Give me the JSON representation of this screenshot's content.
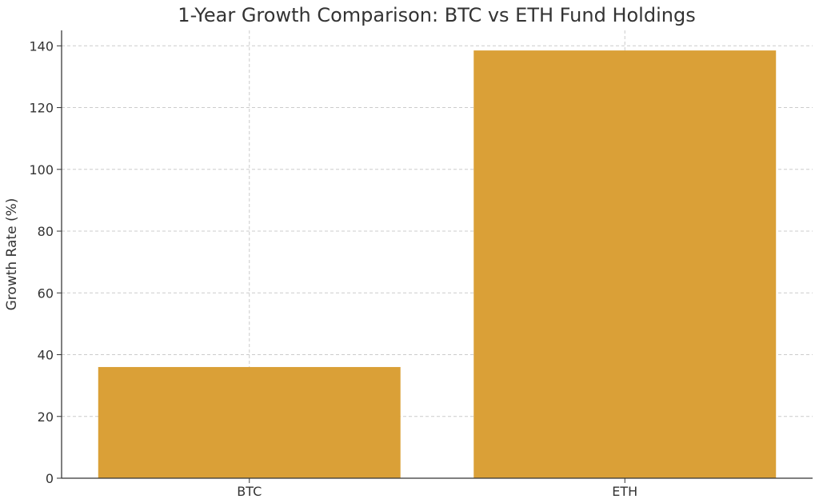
{
  "chart_data": {
    "type": "bar",
    "title": "1-Year Growth Comparison: BTC vs ETH Fund Holdings",
    "xlabel": "",
    "ylabel": "Growth Rate (%)",
    "categories": [
      "BTC",
      "ETH"
    ],
    "values": [
      36,
      138.5
    ],
    "ylim": [
      0,
      145
    ],
    "yticks": [
      0,
      20,
      40,
      60,
      80,
      100,
      120,
      140
    ],
    "grid": true,
    "bar_color": "#DAA037"
  }
}
